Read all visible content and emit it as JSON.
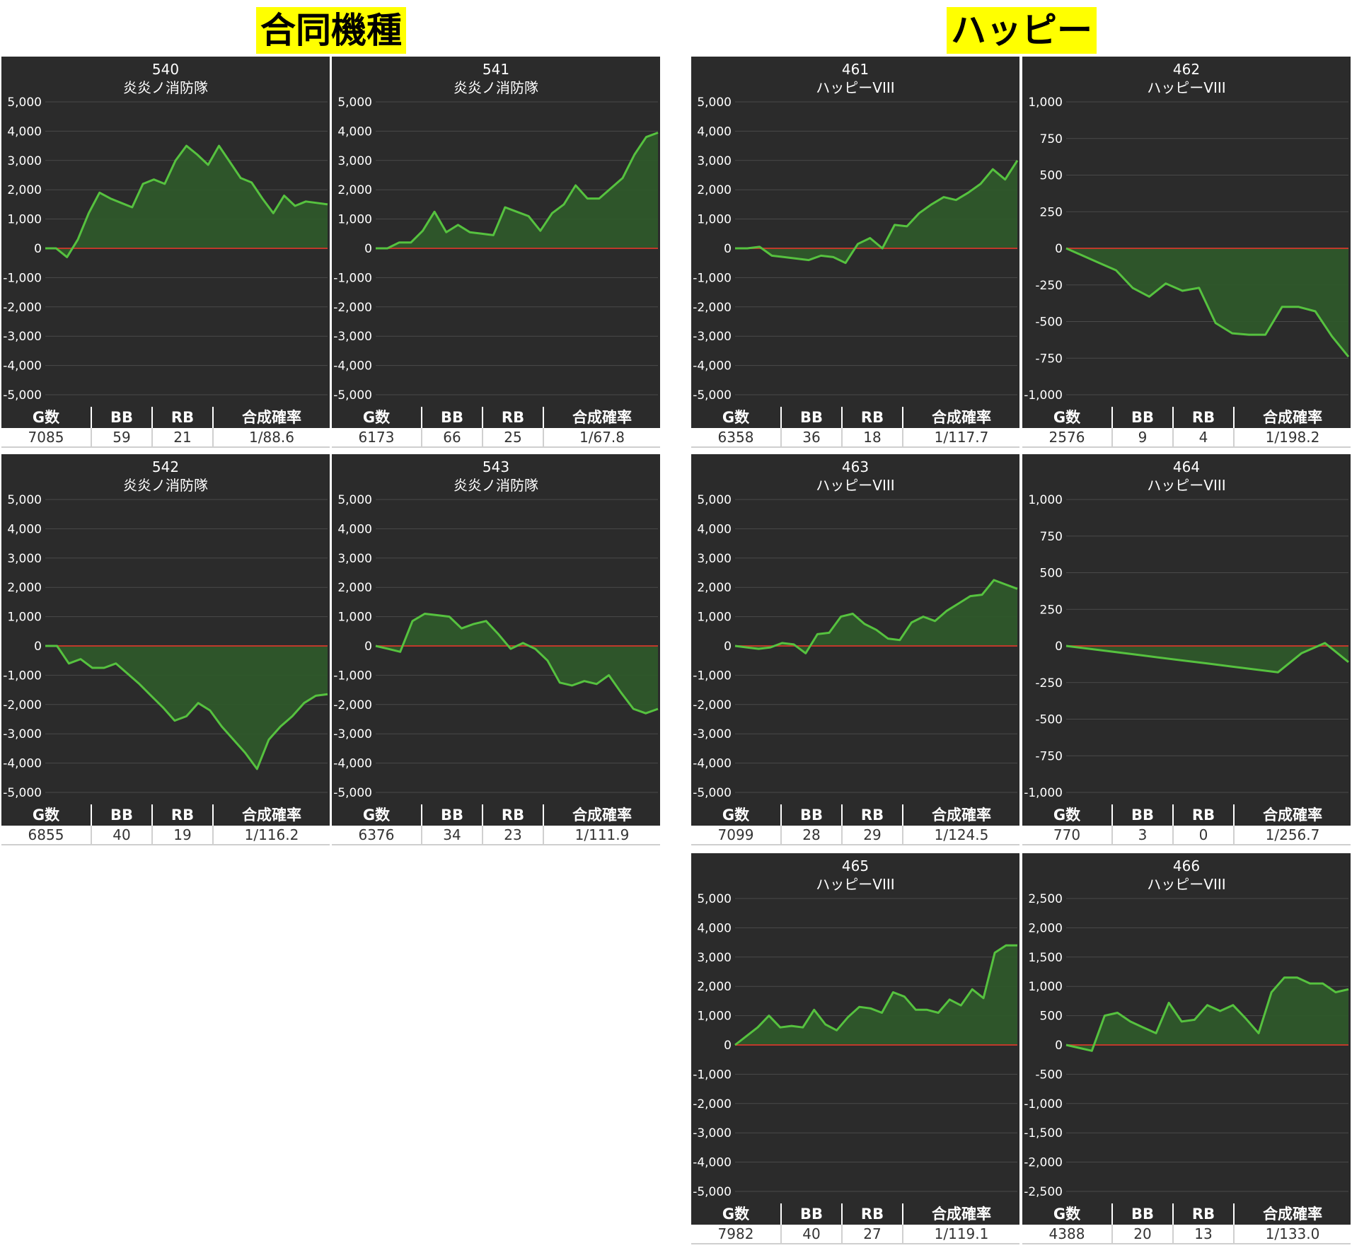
{
  "sections": {
    "left_title": "合同機種",
    "right_title": "ハッピー"
  },
  "stat_headers": [
    "G数",
    "BB",
    "RB",
    "合成確率"
  ],
  "colors": {
    "panel_bg": "#2b2b2b",
    "line": "#56c23f",
    "fill": "#2f5a2a",
    "zero_line": "#c0392b",
    "grid": "#4a4a4a",
    "title_highlight": "#ffff00"
  },
  "chart_data": [
    {
      "type": "area",
      "machine_no": "540",
      "model": "炎炎ノ消防隊",
      "ylim": [
        -5000,
        5000
      ],
      "yticks": [
        5000,
        4000,
        3000,
        2000,
        1000,
        0,
        -1000,
        -2000,
        -3000,
        -4000,
        -5000
      ],
      "values": [
        0,
        0,
        -300,
        300,
        1200,
        1900,
        1700,
        1550,
        1400,
        2200,
        2350,
        2200,
        3000,
        3500,
        3200,
        2850,
        3500,
        2950,
        2400,
        2250,
        1700,
        1200,
        1800,
        1450,
        1600,
        1550,
        1500
      ],
      "stats": {
        "g": "7085",
        "bb": "59",
        "rb": "21",
        "rate": "1/88.6"
      }
    },
    {
      "type": "area",
      "machine_no": "541",
      "model": "炎炎ノ消防隊",
      "ylim": [
        -5000,
        5000
      ],
      "yticks": [
        5000,
        4000,
        3000,
        2000,
        1000,
        0,
        -1000,
        -2000,
        -3000,
        -4000,
        -5000
      ],
      "values": [
        0,
        0,
        200,
        200,
        600,
        1250,
        550,
        800,
        550,
        500,
        450,
        1400,
        1250,
        1100,
        600,
        1200,
        1500,
        2150,
        1700,
        1700,
        2050,
        2400,
        3200,
        3800,
        3950
      ],
      "stats": {
        "g": "6173",
        "bb": "66",
        "rb": "25",
        "rate": "1/67.8"
      }
    },
    {
      "type": "area",
      "machine_no": "461",
      "model": "ハッピーVIII",
      "ylim": [
        -5000,
        5000
      ],
      "yticks": [
        5000,
        4000,
        3000,
        2000,
        1000,
        0,
        -1000,
        -2000,
        -3000,
        -4000,
        -5000
      ],
      "values": [
        0,
        0,
        50,
        -250,
        -300,
        -350,
        -400,
        -250,
        -300,
        -500,
        150,
        350,
        0,
        800,
        750,
        1200,
        1500,
        1750,
        1650,
        1900,
        2200,
        2700,
        2350,
        3000
      ],
      "stats": {
        "g": "6358",
        "bb": "36",
        "rb": "18",
        "rate": "1/117.7"
      }
    },
    {
      "type": "area",
      "machine_no": "462",
      "model": "ハッピーVIII",
      "ylim": [
        -1000,
        1000
      ],
      "yticks": [
        1000,
        750,
        500,
        250,
        0,
        -250,
        -500,
        -750,
        -1000
      ],
      "values": [
        0,
        -50,
        -100,
        -150,
        -270,
        -330,
        -240,
        -290,
        -270,
        -510,
        -580,
        -590,
        -590,
        -400,
        -400,
        -430,
        -600,
        -740
      ],
      "stats": {
        "g": "2576",
        "bb": "9",
        "rb": "4",
        "rate": "1/198.2"
      }
    },
    {
      "type": "area",
      "machine_no": "542",
      "model": "炎炎ノ消防隊",
      "ylim": [
        -5000,
        5000
      ],
      "yticks": [
        5000,
        4000,
        3000,
        2000,
        1000,
        0,
        -1000,
        -2000,
        -3000,
        -4000,
        -5000
      ],
      "values": [
        0,
        0,
        -600,
        -450,
        -750,
        -750,
        -600,
        -950,
        -1300,
        -1700,
        -2100,
        -2550,
        -2400,
        -1950,
        -2200,
        -2750,
        -3200,
        -3650,
        -4200,
        -3200,
        -2750,
        -2400,
        -1950,
        -1700,
        -1650
      ],
      "stats": {
        "g": "6855",
        "bb": "40",
        "rb": "19",
        "rate": "1/116.2"
      }
    },
    {
      "type": "area",
      "machine_no": "543",
      "model": "炎炎ノ消防隊",
      "ylim": [
        -5000,
        5000
      ],
      "yticks": [
        5000,
        4000,
        3000,
        2000,
        1000,
        0,
        -1000,
        -2000,
        -3000,
        -4000,
        -5000
      ],
      "values": [
        0,
        -100,
        -200,
        850,
        1100,
        1050,
        1000,
        600,
        750,
        850,
        400,
        -100,
        100,
        -100,
        -500,
        -1250,
        -1350,
        -1200,
        -1300,
        -1000,
        -1600,
        -2150,
        -2300,
        -2150
      ],
      "stats": {
        "g": "6376",
        "bb": "34",
        "rb": "23",
        "rate": "1/111.9"
      }
    },
    {
      "type": "area",
      "machine_no": "463",
      "model": "ハッピーVIII",
      "ylim": [
        -5000,
        5000
      ],
      "yticks": [
        5000,
        4000,
        3000,
        2000,
        1000,
        0,
        -1000,
        -2000,
        -3000,
        -4000,
        -5000
      ],
      "values": [
        0,
        -50,
        -100,
        -50,
        100,
        50,
        -250,
        400,
        450,
        1000,
        1100,
        750,
        550,
        250,
        200,
        800,
        1000,
        850,
        1200,
        1450,
        1700,
        1750,
        2250,
        2100,
        1950
      ],
      "stats": {
        "g": "7099",
        "bb": "28",
        "rb": "29",
        "rate": "1/124.5"
      }
    },
    {
      "type": "area",
      "machine_no": "464",
      "model": "ハッピーVIII",
      "ylim": [
        -1000,
        1000
      ],
      "yticks": [
        1000,
        750,
        500,
        250,
        0,
        -250,
        -500,
        -750,
        -1000
      ],
      "values": [
        0,
        -20,
        -40,
        -60,
        -80,
        -100,
        -120,
        -140,
        -160,
        -180,
        -50,
        20,
        -110
      ],
      "stats": {
        "g": "770",
        "bb": "3",
        "rb": "0",
        "rate": "1/256.7"
      }
    },
    {
      "type": "area",
      "machine_no": "465",
      "model": "ハッピーVIII",
      "ylim": [
        -5000,
        5000
      ],
      "yticks": [
        5000,
        4000,
        3000,
        2000,
        1000,
        0,
        -1000,
        -2000,
        -3000,
        -4000,
        -5000
      ],
      "values": [
        0,
        300,
        600,
        1000,
        600,
        650,
        600,
        1200,
        700,
        500,
        950,
        1300,
        1250,
        1100,
        1800,
        1650,
        1200,
        1200,
        1100,
        1550,
        1350,
        1900,
        1600,
        3150,
        3400,
        3400
      ],
      "stats": {
        "g": "7982",
        "bb": "40",
        "rb": "27",
        "rate": "1/119.1"
      }
    },
    {
      "type": "area",
      "machine_no": "466",
      "model": "ハッピーVIII",
      "ylim": [
        -2500,
        2500
      ],
      "yticks": [
        2500,
        2000,
        1500,
        1000,
        500,
        0,
        -500,
        -1000,
        -1500,
        -2000,
        -2500
      ],
      "values": [
        0,
        -50,
        -100,
        500,
        550,
        400,
        300,
        200,
        720,
        400,
        430,
        680,
        580,
        680,
        450,
        200,
        900,
        1150,
        1150,
        1050,
        1050,
        900,
        950
      ],
      "stats": {
        "g": "4388",
        "bb": "20",
        "rb": "13",
        "rate": "1/133.0"
      }
    }
  ]
}
